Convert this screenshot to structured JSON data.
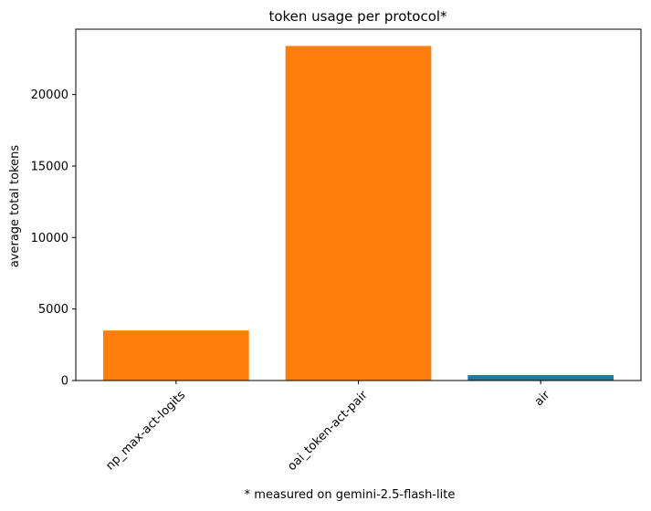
{
  "chart_data": {
    "type": "bar",
    "title": "token usage per protocol*",
    "xlabel": "* measured on gemini-2.5-flash-lite",
    "ylabel": "average total tokens",
    "categories": [
      "np_max-act-logits",
      "oai_token-act-pair",
      "air"
    ],
    "values": [
      3500,
      23400,
      380
    ],
    "colors": [
      "#ff7f0e",
      "#ff7f0e",
      "#1f77b4"
    ],
    "ylim": [
      0,
      24570
    ],
    "yticks": [
      0,
      5000,
      10000,
      15000,
      20000
    ],
    "grid": false,
    "legend": "none"
  }
}
